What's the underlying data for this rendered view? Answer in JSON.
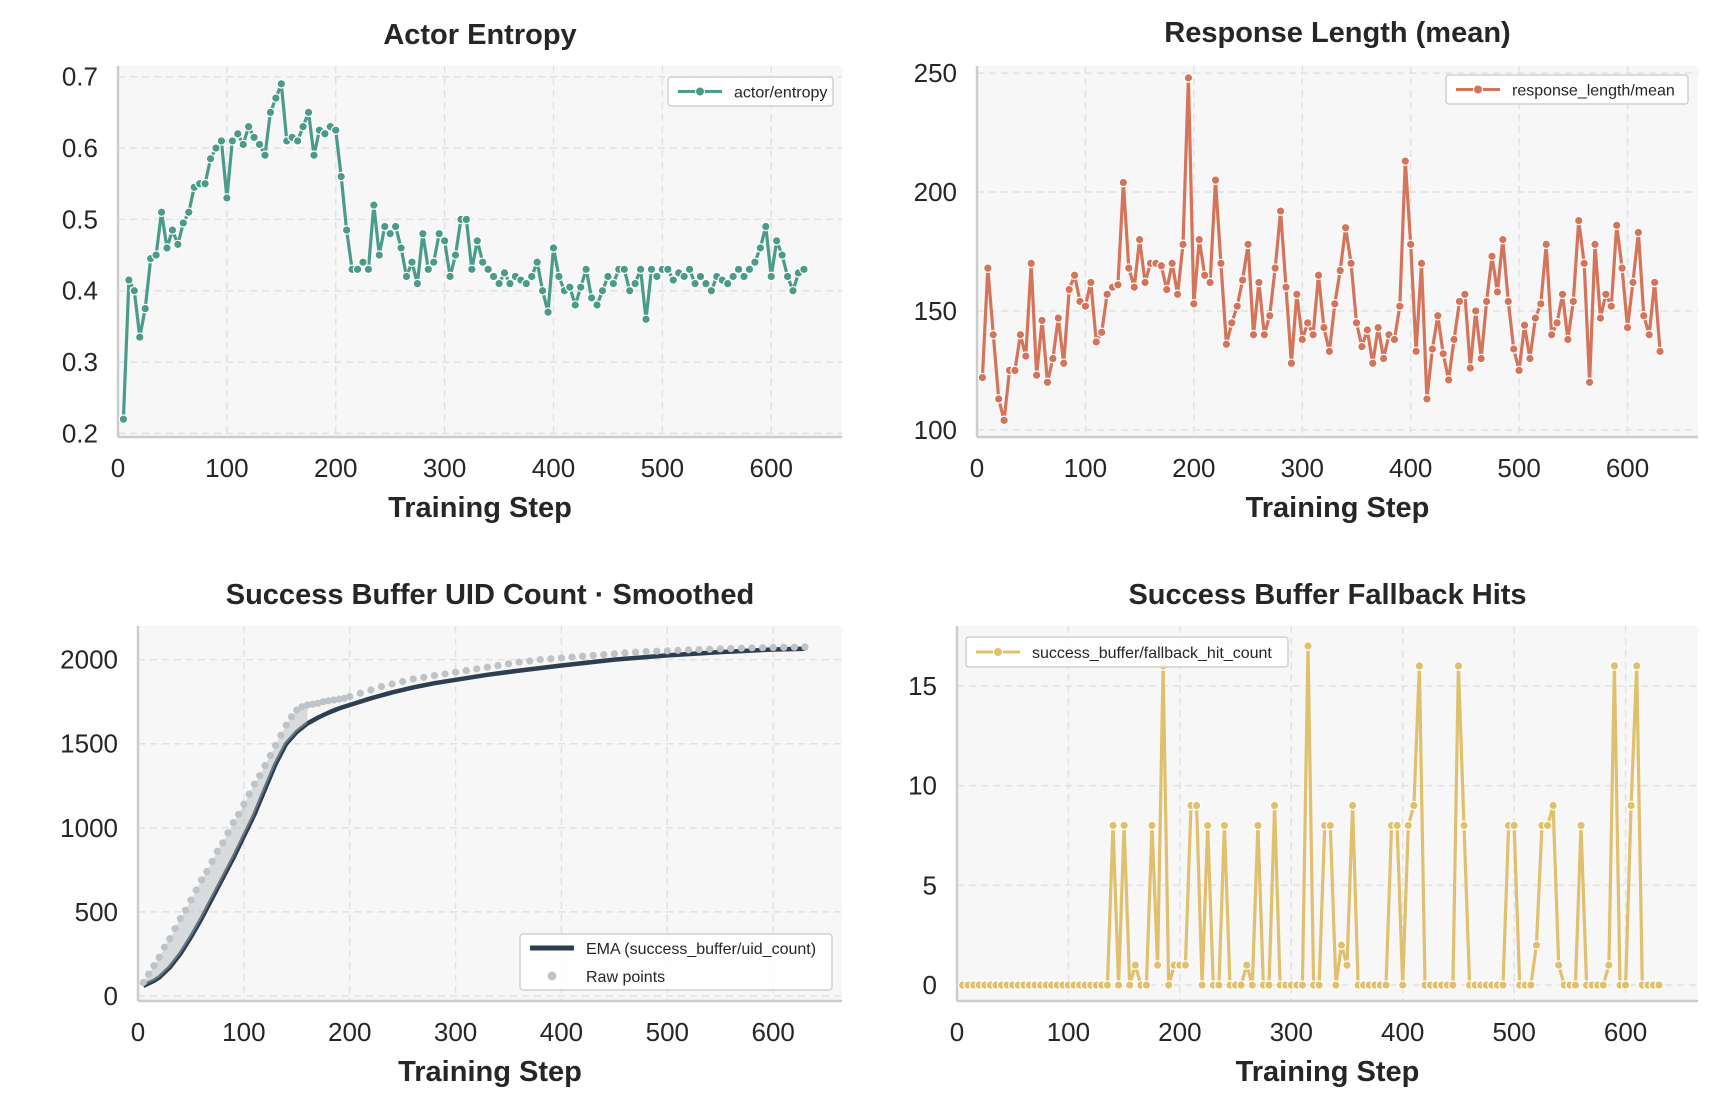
{
  "chart_data": [
    {
      "type": "line",
      "title": "Actor Entropy",
      "xlabel": "Training Step",
      "ylabel": "",
      "xlim": [
        0,
        665
      ],
      "ylim": [
        0.195,
        0.715
      ],
      "xticks": [
        0,
        100,
        200,
        300,
        400,
        500,
        600
      ],
      "yticks": [
        0.2,
        0.3,
        0.4,
        0.5,
        0.6,
        0.7
      ],
      "grid": true,
      "legend_position": "top-right",
      "series": [
        {
          "name": "actor/entropy",
          "color": "#4a9b8a",
          "marker": "circle",
          "x": [
            5,
            10,
            15,
            20,
            25,
            30,
            35,
            40,
            45,
            50,
            55,
            60,
            65,
            70,
            75,
            80,
            85,
            90,
            95,
            100,
            105,
            110,
            115,
            120,
            125,
            130,
            135,
            140,
            145,
            150,
            155,
            160,
            165,
            170,
            175,
            180,
            185,
            190,
            195,
            200,
            205,
            210,
            215,
            220,
            225,
            230,
            235,
            240,
            245,
            250,
            255,
            260,
            265,
            270,
            275,
            280,
            285,
            290,
            295,
            300,
            305,
            310,
            315,
            320,
            325,
            330,
            335,
            340,
            345,
            350,
            355,
            360,
            365,
            370,
            375,
            380,
            385,
            390,
            395,
            400,
            405,
            410,
            415,
            420,
            425,
            430,
            435,
            440,
            445,
            450,
            455,
            460,
            465,
            470,
            475,
            480,
            485,
            490,
            495,
            500,
            505,
            510,
            515,
            520,
            525,
            530,
            535,
            540,
            545,
            550,
            555,
            560,
            565,
            570,
            575,
            580,
            585,
            590,
            595,
            600,
            605,
            610,
            615,
            620,
            625,
            630
          ],
          "values": [
            0.22,
            0.415,
            0.4,
            0.335,
            0.375,
            0.445,
            0.45,
            0.51,
            0.46,
            0.485,
            0.465,
            0.495,
            0.51,
            0.545,
            0.55,
            0.55,
            0.585,
            0.6,
            0.61,
            0.53,
            0.61,
            0.62,
            0.605,
            0.63,
            0.615,
            0.605,
            0.59,
            0.65,
            0.67,
            0.69,
            0.61,
            0.615,
            0.61,
            0.63,
            0.65,
            0.59,
            0.625,
            0.62,
            0.63,
            0.625,
            0.56,
            0.485,
            0.43,
            0.43,
            0.44,
            0.43,
            0.52,
            0.45,
            0.49,
            0.48,
            0.49,
            0.46,
            0.42,
            0.44,
            0.41,
            0.48,
            0.43,
            0.44,
            0.48,
            0.47,
            0.42,
            0.45,
            0.5,
            0.5,
            0.43,
            0.47,
            0.44,
            0.43,
            0.42,
            0.41,
            0.425,
            0.41,
            0.42,
            0.415,
            0.41,
            0.42,
            0.44,
            0.4,
            0.37,
            0.46,
            0.42,
            0.4,
            0.405,
            0.38,
            0.405,
            0.43,
            0.39,
            0.38,
            0.4,
            0.42,
            0.41,
            0.43,
            0.43,
            0.4,
            0.41,
            0.43,
            0.36,
            0.43,
            0.42,
            0.43,
            0.43,
            0.415,
            0.425,
            0.42,
            0.43,
            0.41,
            0.42,
            0.41,
            0.4,
            0.42,
            0.415,
            0.41,
            0.42,
            0.43,
            0.42,
            0.43,
            0.44,
            0.46,
            0.49,
            0.42,
            0.47,
            0.45,
            0.42,
            0.4,
            0.425,
            0.43
          ],
          "sparse_note": ""
        }
      ]
    },
    {
      "type": "line",
      "title": "Response Length (mean)",
      "xlabel": "Training Step",
      "ylabel": "",
      "xlim": [
        0,
        665
      ],
      "ylim": [
        97,
        253
      ],
      "xticks": [
        0,
        100,
        200,
        300,
        400,
        500,
        600
      ],
      "yticks": [
        100,
        150,
        200,
        250
      ],
      "grid": true,
      "legend_position": "top-right",
      "series": [
        {
          "name": "response_length/mean",
          "color": "#d4745a",
          "marker": "circle",
          "x": [
            5,
            10,
            15,
            20,
            25,
            30,
            35,
            40,
            45,
            50,
            55,
            60,
            65,
            70,
            75,
            80,
            85,
            90,
            95,
            100,
            105,
            110,
            115,
            120,
            125,
            130,
            135,
            140,
            145,
            150,
            155,
            160,
            165,
            170,
            175,
            180,
            185,
            190,
            195,
            200,
            205,
            210,
            215,
            220,
            225,
            230,
            235,
            240,
            245,
            250,
            255,
            260,
            265,
            270,
            275,
            280,
            285,
            290,
            295,
            300,
            305,
            310,
            315,
            320,
            325,
            330,
            335,
            340,
            345,
            350,
            355,
            360,
            365,
            370,
            375,
            380,
            385,
            390,
            395,
            400,
            405,
            410,
            415,
            420,
            425,
            430,
            435,
            440,
            445,
            450,
            455,
            460,
            465,
            470,
            475,
            480,
            485,
            490,
            495,
            500,
            505,
            510,
            515,
            520,
            525,
            530,
            535,
            540,
            545,
            550,
            555,
            560,
            565,
            570,
            575,
            580,
            585,
            590,
            595,
            600,
            605,
            610,
            615,
            620,
            625,
            630
          ],
          "values": [
            122,
            168,
            140,
            113,
            104,
            125,
            125,
            140,
            131,
            170,
            123,
            146,
            120,
            130,
            147,
            128,
            159,
            165,
            154,
            152,
            162,
            137,
            141,
            157,
            160,
            161,
            204,
            168,
            160,
            180,
            162,
            170,
            170,
            169,
            159,
            170,
            157,
            178,
            248,
            153,
            180,
            165,
            162,
            205,
            170,
            136,
            145,
            152,
            163,
            178,
            140,
            162,
            140,
            148,
            168,
            192,
            160,
            128,
            157,
            138,
            145,
            140,
            165,
            143,
            133,
            153,
            167,
            185,
            170,
            145,
            135,
            142,
            128,
            143,
            130,
            140,
            138,
            152,
            213,
            178,
            133,
            170,
            113,
            134,
            148,
            132,
            121,
            138,
            154,
            157,
            126,
            150,
            130,
            154,
            173,
            158,
            180,
            154,
            134,
            125,
            144,
            130,
            147,
            153,
            178,
            140,
            145,
            157,
            138,
            154,
            188,
            170,
            120,
            178,
            147,
            157,
            152,
            186,
            168,
            143,
            162,
            183,
            148,
            140,
            162,
            133
          ],
          "sparse_note": ""
        }
      ]
    },
    {
      "type": "line",
      "title": "Success Buffer UID Count · Smoothed",
      "xlabel": "Training Step",
      "ylabel": "",
      "xlim": [
        0,
        665
      ],
      "ylim": [
        -30,
        2200
      ],
      "xticks": [
        0,
        100,
        200,
        300,
        400,
        500,
        600
      ],
      "yticks": [
        0,
        500,
        1000,
        1500,
        2000
      ],
      "grid": true,
      "legend_position": "bottom-right",
      "series": [
        {
          "name": "EMA (success_buffer/uid_count)",
          "color": "#2c3e50",
          "marker": "none",
          "x": [
            5,
            10,
            15,
            20,
            25,
            30,
            40,
            50,
            60,
            70,
            80,
            90,
            100,
            110,
            120,
            130,
            140,
            150,
            160,
            170,
            180,
            190,
            200,
            220,
            240,
            260,
            280,
            300,
            330,
            360,
            400,
            450,
            500,
            550,
            600,
            630
          ],
          "values": [
            60,
            75,
            90,
            110,
            140,
            170,
            250,
            350,
            460,
            580,
            700,
            820,
            950,
            1080,
            1230,
            1380,
            1500,
            1570,
            1620,
            1655,
            1685,
            1710,
            1730,
            1770,
            1805,
            1835,
            1860,
            1880,
            1910,
            1935,
            1965,
            2000,
            2025,
            2045,
            2060,
            2065
          ]
        },
        {
          "name": "Raw points",
          "color": "#bdc3c7",
          "marker": "circle",
          "x": [
            5,
            10,
            15,
            20,
            25,
            30,
            35,
            40,
            45,
            50,
            55,
            60,
            65,
            70,
            75,
            80,
            85,
            90,
            95,
            100,
            105,
            110,
            115,
            120,
            125,
            130,
            135,
            140,
            145,
            150,
            155,
            160,
            165,
            170,
            175,
            180,
            185,
            190,
            195,
            200,
            210,
            220,
            230,
            240,
            250,
            260,
            270,
            280,
            290,
            300,
            310,
            320,
            330,
            340,
            350,
            360,
            370,
            380,
            390,
            400,
            410,
            420,
            430,
            440,
            450,
            460,
            470,
            480,
            490,
            500,
            510,
            520,
            530,
            540,
            550,
            560,
            570,
            580,
            590,
            600,
            610,
            620,
            630
          ],
          "values": [
            80,
            130,
            180,
            230,
            290,
            340,
            400,
            460,
            510,
            570,
            630,
            690,
            740,
            800,
            860,
            910,
            970,
            1030,
            1080,
            1140,
            1200,
            1260,
            1310,
            1370,
            1430,
            1490,
            1550,
            1610,
            1660,
            1700,
            1720,
            1730,
            1735,
            1740,
            1750,
            1755,
            1760,
            1765,
            1770,
            1780,
            1800,
            1820,
            1840,
            1855,
            1870,
            1885,
            1895,
            1905,
            1915,
            1925,
            1935,
            1945,
            1955,
            1965,
            1975,
            1985,
            1992,
            2000,
            2005,
            2010,
            2015,
            2020,
            2025,
            2030,
            2035,
            2040,
            2044,
            2048,
            2050,
            2052,
            2055,
            2058,
            2060,
            2062,
            2064,
            2066,
            2068,
            2070,
            2071,
            2072,
            2073,
            2074,
            2075
          ]
        }
      ]
    },
    {
      "type": "line",
      "title": "Success Buffer Fallback Hits",
      "xlabel": "Training Step",
      "ylabel": "",
      "xlim": [
        0,
        665
      ],
      "ylim": [
        -0.8,
        18
      ],
      "xticks": [
        0,
        100,
        200,
        300,
        400,
        500,
        600
      ],
      "yticks": [
        0,
        5,
        10,
        15
      ],
      "grid": true,
      "legend_position": "top-left",
      "series": [
        {
          "name": "success_buffer/fallback_hit_count",
          "color": "#e0c06e",
          "marker": "circle",
          "x": [
            5,
            10,
            15,
            20,
            25,
            30,
            35,
            40,
            45,
            50,
            55,
            60,
            65,
            70,
            75,
            80,
            85,
            90,
            95,
            100,
            105,
            110,
            115,
            120,
            125,
            130,
            135,
            140,
            145,
            150,
            155,
            160,
            165,
            170,
            175,
            180,
            185,
            190,
            195,
            200,
            205,
            210,
            215,
            220,
            225,
            230,
            235,
            240,
            245,
            250,
            255,
            260,
            265,
            270,
            275,
            280,
            285,
            290,
            295,
            300,
            305,
            310,
            315,
            320,
            325,
            330,
            335,
            340,
            345,
            350,
            355,
            360,
            365,
            370,
            375,
            380,
            385,
            390,
            395,
            400,
            405,
            410,
            415,
            420,
            425,
            430,
            435,
            440,
            445,
            450,
            455,
            460,
            465,
            470,
            475,
            480,
            485,
            490,
            495,
            500,
            505,
            510,
            515,
            520,
            525,
            530,
            535,
            540,
            545,
            550,
            555,
            560,
            565,
            570,
            575,
            580,
            585,
            590,
            595,
            600,
            605,
            610,
            615,
            620,
            625,
            630
          ],
          "values": [
            0,
            0,
            0,
            0,
            0,
            0,
            0,
            0,
            0,
            0,
            0,
            0,
            0,
            0,
            0,
            0,
            0,
            0,
            0,
            0,
            0,
            0,
            0,
            0,
            0,
            0,
            0,
            8,
            0,
            8,
            0,
            1,
            0,
            0,
            8,
            1,
            16,
            0,
            1,
            1,
            1,
            9,
            9,
            0,
            8,
            0,
            0,
            8,
            0,
            0,
            0,
            1,
            0,
            8,
            0,
            0,
            9,
            0,
            0,
            0,
            0,
            0,
            17,
            0,
            0,
            8,
            8,
            0,
            2,
            1,
            9,
            0,
            0,
            0,
            0,
            0,
            0,
            8,
            8,
            0,
            8,
            9,
            16,
            0,
            0,
            0,
            0,
            0,
            0,
            16,
            8,
            0,
            0,
            0,
            0,
            0,
            0,
            0,
            8,
            8,
            0,
            0,
            0,
            2,
            8,
            8,
            9,
            1,
            0,
            0,
            0,
            8,
            0,
            0,
            0,
            0,
            1,
            16,
            0,
            0,
            9,
            16,
            0,
            0,
            0,
            0
          ]
        }
      ]
    }
  ]
}
